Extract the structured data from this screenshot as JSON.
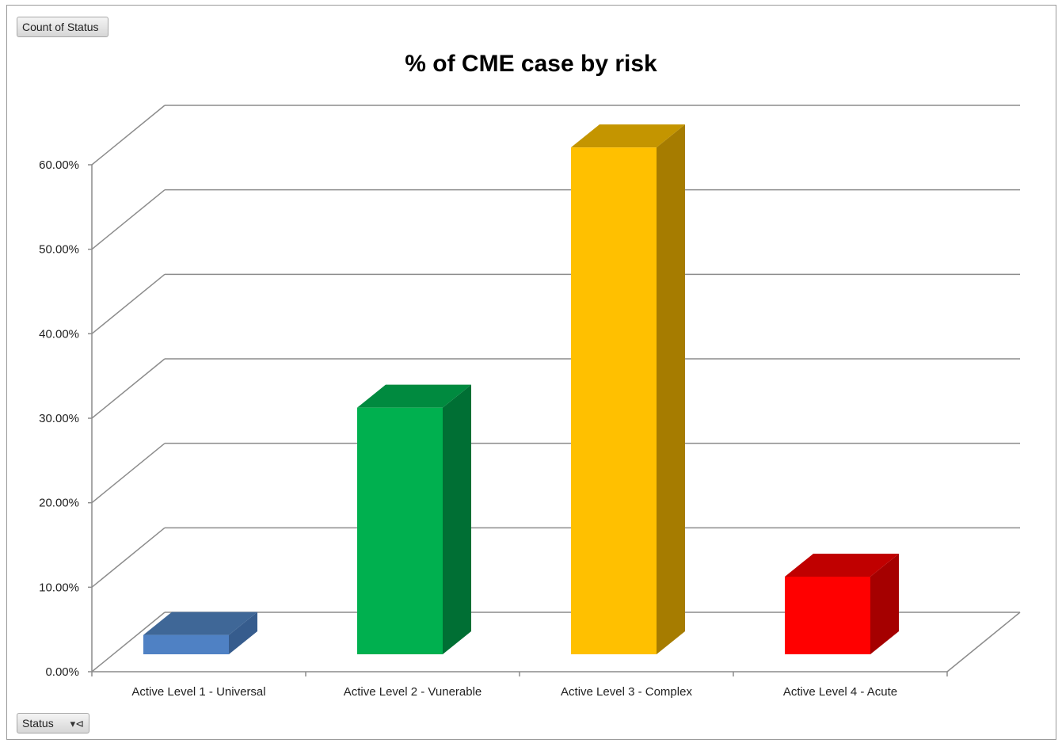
{
  "buttons": {
    "count_label": "Count of Status",
    "status_label": "Status"
  },
  "chart_data": {
    "type": "bar",
    "title": "% of CME case by risk",
    "categories": [
      "Active Level 1 - Universal",
      "Active Level 2 - Vunerable",
      "Active Level 3 - Complex",
      "Active Level 4 - Acute"
    ],
    "values": [
      2.1,
      29.0,
      59.8,
      9.0
    ],
    "value_format": "percent",
    "ylim": [
      0,
      60
    ],
    "yticks": [
      "0.00%",
      "10.00%",
      "20.00%",
      "30.00%",
      "40.00%",
      "50.00%",
      "60.00%"
    ],
    "grid": true,
    "style": "3d-column",
    "colors": [
      {
        "front": "#4f81c4",
        "side": "#365c8d",
        "top": "#3f6797"
      },
      {
        "front": "#00b04f",
        "side": "#006f34",
        "top": "#008a3f"
      },
      {
        "front": "#ffc000",
        "side": "#a67c00",
        "top": "#c49500"
      },
      {
        "front": "#ff0000",
        "side": "#a50000",
        "top": "#c00000"
      }
    ]
  }
}
